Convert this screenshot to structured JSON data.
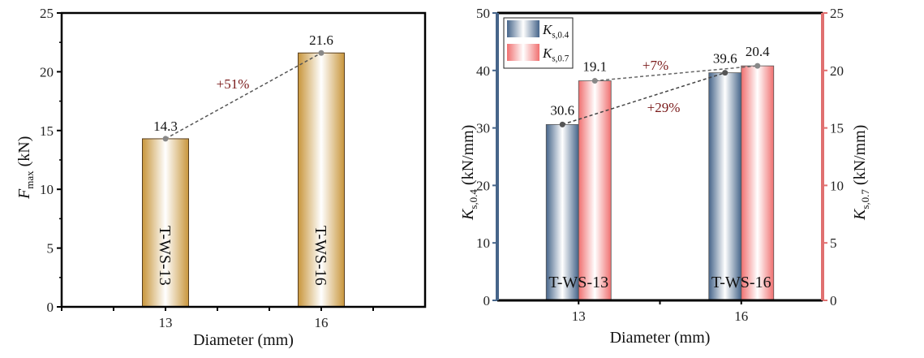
{
  "chart_data": [
    {
      "type": "bar",
      "categories": [
        "13",
        "16"
      ],
      "x": [
        13,
        16
      ],
      "values": [
        14.3,
        21.6
      ],
      "data_labels": [
        "14.3",
        "21.6"
      ],
      "bar_labels": [
        "T-WS-13",
        "T-WS-16"
      ],
      "annotation": "+51%",
      "xlabel": "Diameter (mm)",
      "ylabel_main": "F",
      "ylabel_sub": "max",
      "ylabel_unit": " (kN)",
      "xlim": [
        11,
        18
      ],
      "ylim": [
        0,
        25
      ],
      "yticks": [
        0,
        5,
        10,
        15,
        20,
        25
      ],
      "xticks": [
        13,
        16
      ],
      "grid": false,
      "colors": {
        "bar_edge": "#c8963c",
        "bar_center": "#ffffff"
      }
    },
    {
      "type": "bar",
      "categories": [
        "13",
        "16"
      ],
      "x": [
        13,
        16
      ],
      "series": [
        {
          "name_main": "K",
          "name_sub": "s,0.4",
          "values": [
            30.6,
            39.6
          ],
          "data_labels": [
            "30.6",
            "39.6"
          ],
          "axis": "left",
          "color": "#46658a"
        },
        {
          "name_main": "K",
          "name_sub": "s,0.7",
          "values": [
            19.1,
            20.4
          ],
          "data_labels": [
            "19.1",
            "20.4"
          ],
          "axis": "right",
          "color": "#f07070"
        }
      ],
      "group_labels": [
        "T-WS-13",
        "T-WS-16"
      ],
      "annotations": [
        "+7%",
        "+29%"
      ],
      "xlabel": "Diameter (mm)",
      "ylabel_left_main": "K",
      "ylabel_left_sub": "s,0.4",
      "ylabel_left_unit": " (kN/mm)",
      "ylabel_right_main": "K",
      "ylabel_right_sub": "s,0.7",
      "ylabel_right_unit": " (kN/mm)",
      "xlim": [
        11.5,
        17.5
      ],
      "ylim_left": [
        0,
        50
      ],
      "ylim_right": [
        0,
        25
      ],
      "yticks_left": [
        0,
        10,
        20,
        30,
        40,
        50
      ],
      "yticks_right": [
        0,
        5,
        10,
        15,
        20,
        25
      ],
      "xticks": [
        13,
        16
      ],
      "legend": "top-left",
      "grid": false,
      "colors": {
        "left_axis": "#46658a",
        "right_axis": "#e07070"
      }
    }
  ]
}
